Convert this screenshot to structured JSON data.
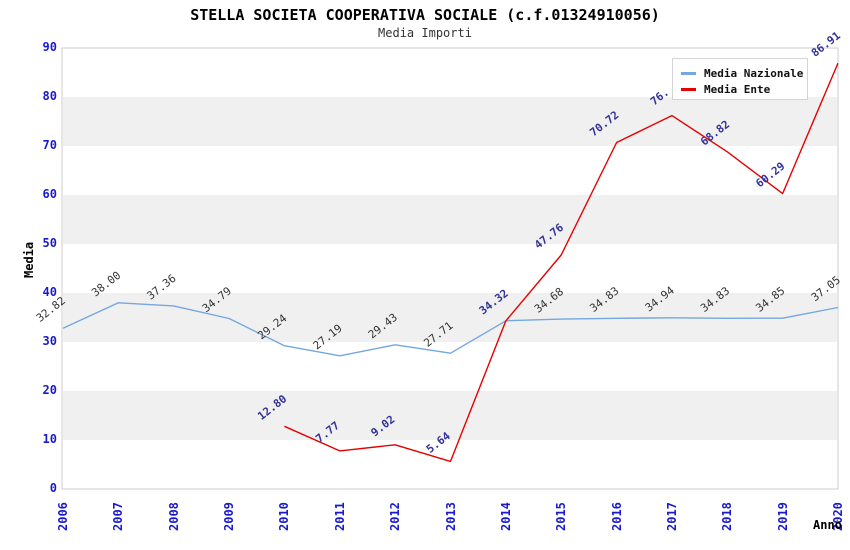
{
  "header": {
    "title": "STELLA SOCIETA COOPERATIVA SOCIALE (c.f.01324910056)",
    "subtitle": "Media Importi"
  },
  "colors": {
    "tick_blue": "#1a1acc",
    "band_gray": "#f0f0f0",
    "plot_border": "#cccccc",
    "nazionale_line": "#74a7e0",
    "nazionale_label": "#333333",
    "ente_line": "#e60000",
    "ente_label": "#333399"
  },
  "chart_data": {
    "type": "line",
    "title": "STELLA SOCIETA COOPERATIVA SOCIALE (c.f.01324910056)",
    "subtitle": "Media Importi",
    "xlabel": "Anno",
    "ylabel": "Media",
    "ylim": [
      0,
      90
    ],
    "y_ticks": [
      0,
      10,
      20,
      30,
      40,
      50,
      60,
      70,
      80,
      90
    ],
    "grid_bands": [
      [
        10,
        20
      ],
      [
        30,
        40
      ],
      [
        50,
        60
      ],
      [
        70,
        80
      ]
    ],
    "legend_position": "top-right",
    "categories": [
      "2006",
      "2007",
      "2008",
      "2009",
      "2010",
      "2011",
      "2012",
      "2013",
      "2014",
      "2015",
      "2016",
      "2017",
      "2018",
      "2019",
      "2020"
    ],
    "series": [
      {
        "name": "Media Nazionale",
        "color": "#74a7e0",
        "label_color": "#333333",
        "label_weight": 400,
        "values": [
          32.82,
          38.0,
          37.36,
          34.79,
          29.24,
          27.19,
          29.43,
          27.71,
          34.32,
          34.68,
          34.83,
          34.94,
          34.83,
          34.85,
          37.05
        ],
        "labels": [
          "32.82",
          "38.00",
          "37.36",
          "34.79",
          "29.24",
          "27.19",
          "29.43",
          "27.71",
          "",
          "34.68",
          "34.83",
          "34.94",
          "34.83",
          "34.85",
          "37.05"
        ]
      },
      {
        "name": "Media Ente",
        "color": "#e60000",
        "label_color": "#333399",
        "label_weight": 700,
        "values": [
          null,
          null,
          null,
          null,
          12.8,
          7.77,
          9.02,
          5.64,
          34.32,
          47.76,
          70.72,
          76.2,
          68.82,
          60.29,
          86.91
        ],
        "labels": [
          null,
          null,
          null,
          null,
          "12.80",
          "7.77",
          "9.02",
          "5.64",
          "34.32",
          "47.76",
          "70.72",
          "76.",
          "68.82",
          "60.29",
          "86.91"
        ]
      }
    ]
  }
}
